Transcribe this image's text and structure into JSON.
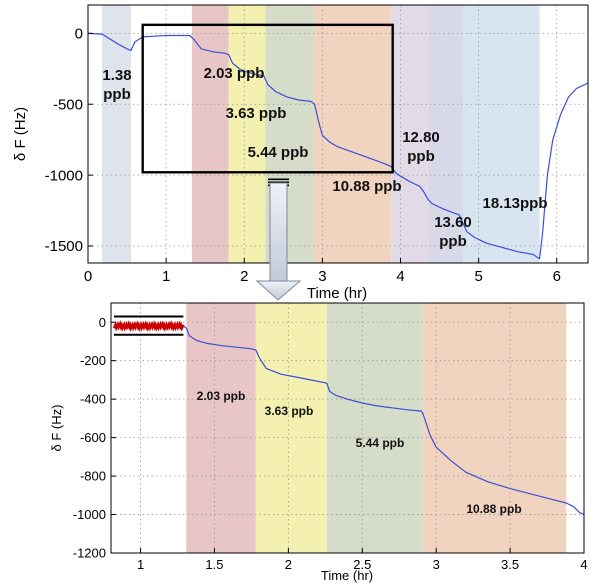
{
  "chart_data": [
    {
      "type": "line",
      "xlabel": "Time (hr)",
      "ylabel": "δ F (Hz)",
      "xlim": [
        0,
        6.4
      ],
      "ylim": [
        -1620,
        200
      ],
      "xticks": [
        "0",
        "1",
        "2",
        "3",
        "4",
        "5",
        "6"
      ],
      "yticks": [
        "0",
        "-500",
        "-1000",
        "-1500"
      ],
      "grid": true,
      "line_color": "#3b4fd6",
      "bands": [
        {
          "label": "1.38 ppb",
          "lines": [
            "1.38",
            "ppb"
          ],
          "x0": 0.18,
          "x1": 0.55,
          "color": "#dfe4ec"
        },
        {
          "label": "2.03 ppb",
          "lines": [
            "2.03 ppb"
          ],
          "x0": 1.33,
          "x1": 1.8,
          "color": "#e8c6c6"
        },
        {
          "label": "3.63 ppb",
          "lines": [
            "3.63 ppb"
          ],
          "x0": 1.8,
          "x1": 2.27,
          "color": "#f3f0b0"
        },
        {
          "label": "5.44 ppb",
          "lines": [
            "5.44 ppb"
          ],
          "x0": 2.27,
          "x1": 2.9,
          "color": "#d5dcc7"
        },
        {
          "label": "10.88 ppb",
          "lines": [
            "10.88 ppb"
          ],
          "x0": 2.9,
          "x1": 3.88,
          "color": "#f1d4bf"
        },
        {
          "label": "12.80 ppb",
          "lines": [
            "12.80",
            "ppb"
          ],
          "x0": 3.88,
          "x1": 4.35,
          "color": "#e2dae7"
        },
        {
          "label": "13.60 ppb",
          "lines": [
            "13.60",
            "ppb"
          ],
          "x0": 4.35,
          "x1": 4.8,
          "color": "#d7d9e8"
        },
        {
          "label": "18.13ppb",
          "lines": [
            "18.13ppb"
          ],
          "x0": 4.8,
          "x1": 5.78,
          "color": "#d8e4f0"
        }
      ],
      "zoom_box": {
        "x0": 0.7,
        "x1": 3.9,
        "y0": 60,
        "y1": -980
      },
      "series": [
        {
          "x": [
            0.0,
            0.18,
            0.28,
            0.4,
            0.5,
            0.55,
            0.6,
            0.7,
            0.85,
            1.0,
            1.15,
            1.3,
            1.35,
            1.45,
            1.6,
            1.75,
            1.8,
            1.85,
            1.95,
            2.05,
            2.15,
            2.25,
            2.3,
            2.4,
            2.55,
            2.7,
            2.85,
            2.9,
            2.95,
            3.0,
            3.1,
            3.2,
            3.4,
            3.6,
            3.8,
            3.88,
            3.95,
            4.1,
            4.25,
            4.3,
            4.35,
            4.4,
            4.55,
            4.7,
            4.75,
            4.8,
            4.85,
            4.95,
            5.1,
            5.3,
            5.5,
            5.7,
            5.75,
            5.78,
            5.82,
            5.88,
            5.95,
            6.05,
            6.15,
            6.25,
            6.4
          ],
          "y": [
            0,
            -5,
            -40,
            -80,
            -110,
            -120,
            -60,
            -25,
            -20,
            -15,
            -15,
            -15,
            -40,
            -110,
            -130,
            -140,
            -150,
            -210,
            -255,
            -275,
            -290,
            -300,
            -360,
            -410,
            -450,
            -470,
            -480,
            -500,
            -620,
            -720,
            -770,
            -800,
            -840,
            -880,
            -920,
            -940,
            -990,
            -1040,
            -1080,
            -1120,
            -1170,
            -1200,
            -1240,
            -1270,
            -1280,
            -1340,
            -1400,
            -1440,
            -1480,
            -1510,
            -1540,
            -1560,
            -1580,
            -1590,
            -1400,
            -1000,
            -750,
            -570,
            -450,
            -390,
            -350
          ]
        }
      ]
    },
    {
      "type": "line",
      "xlabel": "Time (hr)",
      "ylabel": "δ F (Hz)",
      "xlim": [
        0.8,
        4.0
      ],
      "ylim": [
        -1200,
        100
      ],
      "xticks": [
        "1",
        "1.5",
        "2",
        "2.5",
        "3",
        "3.5",
        "4"
      ],
      "yticks": [
        "0",
        "-200",
        "-400",
        "-600",
        "-800",
        "-1000",
        "-1200"
      ],
      "grid": true,
      "line_color": "#3b4fd6",
      "bands": [
        {
          "label": "2.03 ppb",
          "lines": [
            "2.03 ppb"
          ],
          "x0": 1.31,
          "x1": 1.78,
          "color": "#e8c6c6"
        },
        {
          "label": "3.63 ppb",
          "lines": [
            "3.63 ppb"
          ],
          "x0": 1.78,
          "x1": 2.26,
          "color": "#f3f0b0"
        },
        {
          "label": "5.44 ppb",
          "lines": [
            "5.44 ppb"
          ],
          "x0": 2.26,
          "x1": 2.91,
          "color": "#d5dcc7"
        },
        {
          "label": "10.88 ppb",
          "lines": [
            "10.88 ppb"
          ],
          "x0": 2.91,
          "x1": 3.88,
          "color": "#f1d4bf"
        }
      ],
      "noise_band": {
        "x0": 0.82,
        "x1": 1.29,
        "center": -20,
        "upper": 30,
        "lower": -65,
        "color": "#cc0000"
      },
      "series": [
        {
          "x": [
            1.29,
            1.31,
            1.33,
            1.38,
            1.45,
            1.55,
            1.65,
            1.75,
            1.78,
            1.8,
            1.85,
            1.95,
            2.05,
            2.15,
            2.25,
            2.26,
            2.28,
            2.32,
            2.4,
            2.5,
            2.6,
            2.7,
            2.8,
            2.9,
            2.91,
            2.93,
            2.96,
            3.0,
            3.1,
            3.2,
            3.35,
            3.5,
            3.65,
            3.8,
            3.88,
            3.93,
            3.97,
            4.0
          ],
          "y": [
            -20,
            -30,
            -70,
            -95,
            -110,
            -122,
            -130,
            -138,
            -145,
            -180,
            -240,
            -270,
            -285,
            -300,
            -315,
            -318,
            -360,
            -380,
            -400,
            -420,
            -435,
            -445,
            -455,
            -462,
            -475,
            -520,
            -590,
            -650,
            -720,
            -780,
            -830,
            -865,
            -895,
            -925,
            -940,
            -960,
            -990,
            -1000
          ]
        }
      ]
    }
  ]
}
